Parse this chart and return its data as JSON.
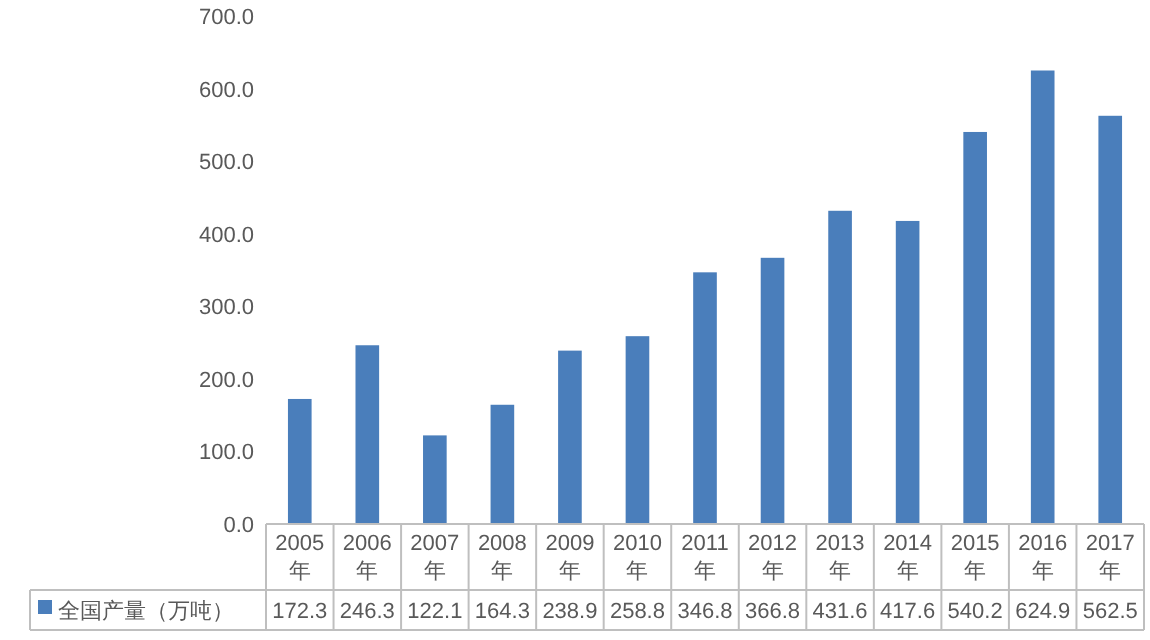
{
  "chart_data": {
    "type": "bar",
    "categories": [
      "2005年",
      "2006年",
      "2007年",
      "2008年",
      "2009年",
      "2010年",
      "2011年",
      "2012年",
      "2013年",
      "2014年",
      "2015年",
      "2016年",
      "2017年"
    ],
    "series": [
      {
        "name": "全国产量（万吨）",
        "color": "#4a7ebb",
        "values": [
          172.3,
          246.3,
          122.1,
          164.3,
          238.9,
          258.8,
          346.8,
          366.8,
          431.6,
          417.6,
          540.2,
          624.9,
          562.5
        ]
      }
    ],
    "ylim": [
      0,
      700
    ],
    "yticks": [
      {
        "value": 0,
        "label": "0.0"
      },
      {
        "value": 100,
        "label": "100.0"
      },
      {
        "value": 200,
        "label": "200.0"
      },
      {
        "value": 300,
        "label": "300.0"
      },
      {
        "value": 400,
        "label": "400.0"
      },
      {
        "value": 500,
        "label": "500.0"
      },
      {
        "value": 600,
        "label": "600.0"
      },
      {
        "value": 700,
        "label": "700.0"
      }
    ],
    "data_labels": true,
    "legend": "bottom",
    "grid": false
  }
}
